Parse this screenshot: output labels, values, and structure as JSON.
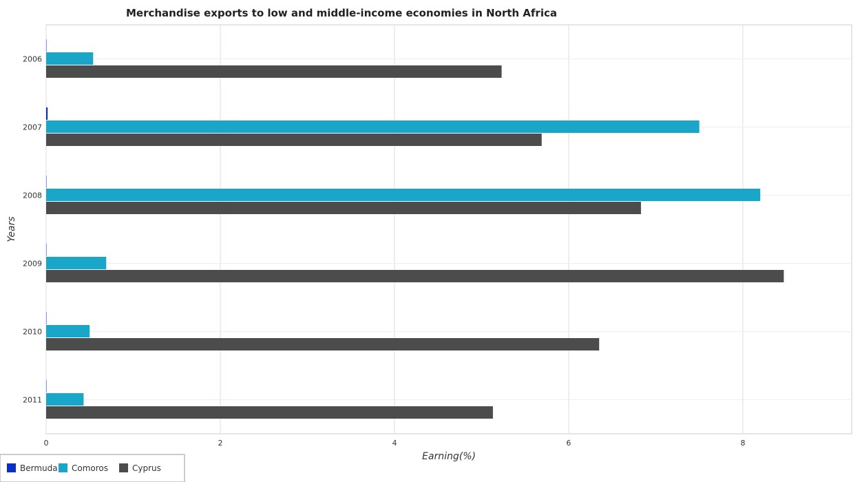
{
  "chart_data": {
    "type": "bar",
    "orientation": "horizontal",
    "title": "Merchandise exports to low and middle-income economies in North Africa",
    "xlabel": "Earning(%)",
    "ylabel": "Years",
    "xlim": [
      0,
      9.25
    ],
    "x_ticks": [
      0,
      2,
      4,
      6,
      8
    ],
    "x_tick_labels": [
      "0",
      "2",
      "4",
      "6",
      "8"
    ],
    "categories": [
      "2006",
      "2007",
      "2008",
      "2009",
      "2010",
      "2011"
    ],
    "series": [
      {
        "name": "Bermuda",
        "color": "#0a2fc6",
        "values": [
          0.0,
          0.017,
          0.0,
          0.0,
          0.0,
          0.0
        ]
      },
      {
        "name": "Comoros",
        "color": "#1aa6c8",
        "values": [
          0.54,
          7.5,
          8.2,
          0.69,
          0.5,
          0.43
        ]
      },
      {
        "name": "Cyprus",
        "color": "#4c4c4c",
        "values": [
          5.23,
          5.69,
          6.83,
          8.47,
          6.35,
          5.13
        ]
      }
    ],
    "grid": true,
    "legend_position": "bottom-left"
  }
}
